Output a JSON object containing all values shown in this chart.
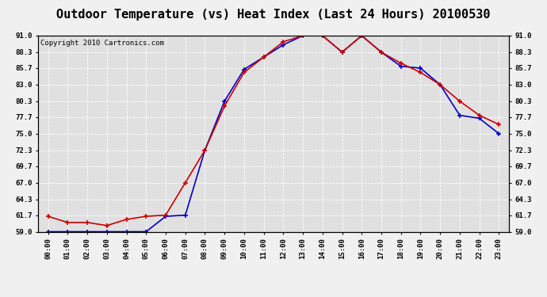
{
  "title": "Outdoor Temperature (vs) Heat Index (Last 24 Hours) 20100530",
  "copyright": "Copyright 2010 Cartronics.com",
  "hours": [
    "00:00",
    "01:00",
    "02:00",
    "03:00",
    "04:00",
    "05:00",
    "06:00",
    "07:00",
    "08:00",
    "09:00",
    "10:00",
    "11:00",
    "12:00",
    "13:00",
    "14:00",
    "15:00",
    "16:00",
    "17:00",
    "18:00",
    "19:00",
    "20:00",
    "21:00",
    "22:00",
    "23:00"
  ],
  "temp": [
    61.5,
    60.5,
    60.5,
    60.0,
    61.0,
    61.5,
    61.7,
    67.0,
    72.3,
    79.5,
    85.0,
    87.5,
    90.0,
    91.0,
    91.0,
    88.3,
    91.0,
    88.3,
    86.5,
    85.0,
    83.0,
    80.3,
    78.0,
    76.5
  ],
  "heat_index": [
    59.0,
    59.0,
    59.0,
    59.0,
    59.0,
    59.0,
    61.5,
    61.7,
    72.3,
    80.3,
    85.5,
    87.5,
    89.5,
    91.0,
    91.0,
    88.3,
    91.0,
    88.3,
    86.0,
    85.7,
    83.0,
    78.0,
    77.5,
    75.0
  ],
  "temp_color": "#cc0000",
  "heat_index_color": "#0000cc",
  "ylim": [
    59.0,
    91.0
  ],
  "yticks": [
    59.0,
    61.7,
    64.3,
    67.0,
    69.7,
    72.3,
    75.0,
    77.7,
    80.3,
    83.0,
    85.7,
    88.3,
    91.0
  ],
  "bg_color": "#f0f0f0",
  "plot_bg_color": "#e0e0e0",
  "grid_color": "#ffffff",
  "title_color": "#000000",
  "title_fontsize": 11,
  "copyright_fontsize": 6.5,
  "marker": "+",
  "marker_size": 4,
  "line_width": 1.2
}
